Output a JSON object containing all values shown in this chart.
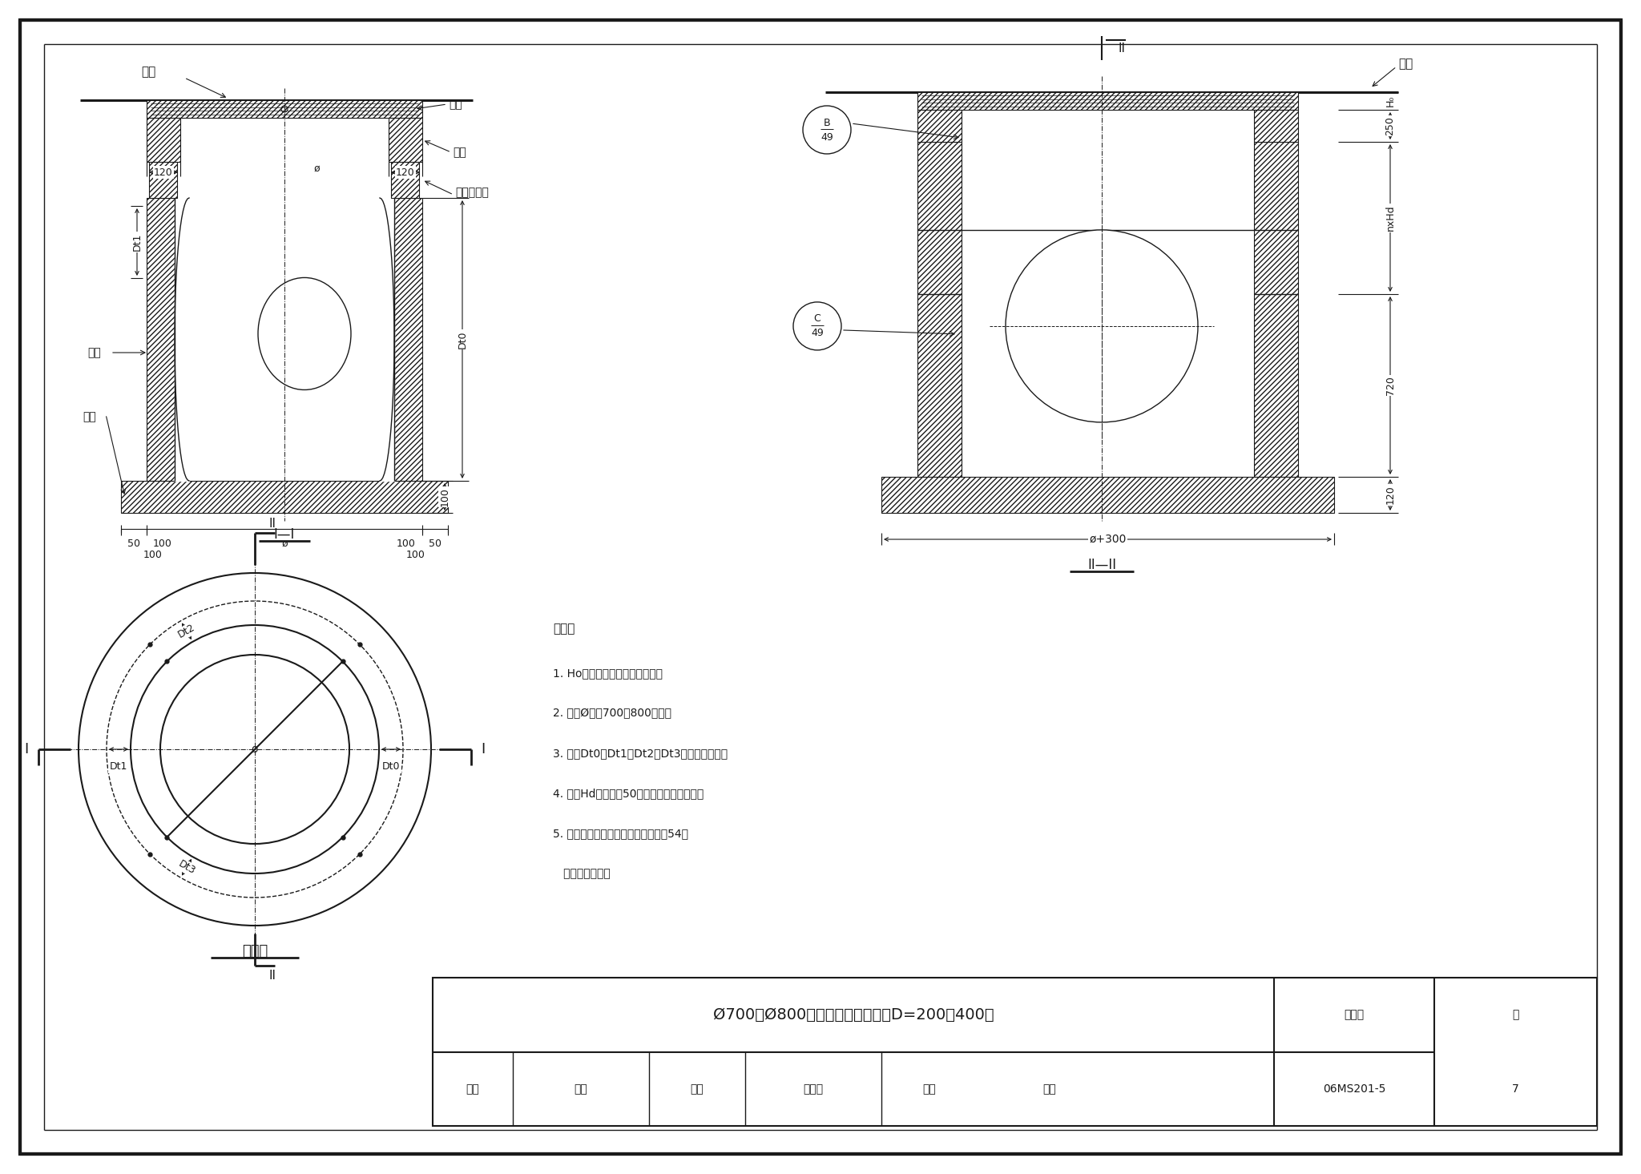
{
  "bg_color": "#ffffff",
  "line_color": "#1a1a1a",
  "title": "Ø700、Ø800圆形检查井装配图（D=200～400）",
  "labels": {
    "dimian": "地面",
    "jinggai": "井盖",
    "jingjuan": "井圈",
    "jingtong_tiaojiekuai": "井筒调节块",
    "jingjing": "井室",
    "dipan": "底板",
    "section1": "I—I",
    "section2": "II—II",
    "pingmian": "平面图",
    "shuoming": "说明：",
    "note1": "1. Ho根据设计选用的井盖确定。",
    "note2": "2. 图中Ø値为700、800两种。",
    "note3": "3. 图中Dt0、Dt1、Dt2、Dt3为预留孔孔径。",
    "note4": "4. 图中Hd尺寸见第50页井筒及井圈配筋图。",
    "note5": "5. 预制构件均设置起吸环，位置见第54页",
    "note5b": "   起吸环安装图。",
    "tujihao": "图集号",
    "tujihao_val": "06MS201-5",
    "ye": "页",
    "ye_val": "7",
    "shen": "审核",
    "shen_name": "荷岐",
    "jiaodui": "校对",
    "jiaodui_name": "李林里",
    "sheji": "设计",
    "sheji_name": "陈辉"
  }
}
